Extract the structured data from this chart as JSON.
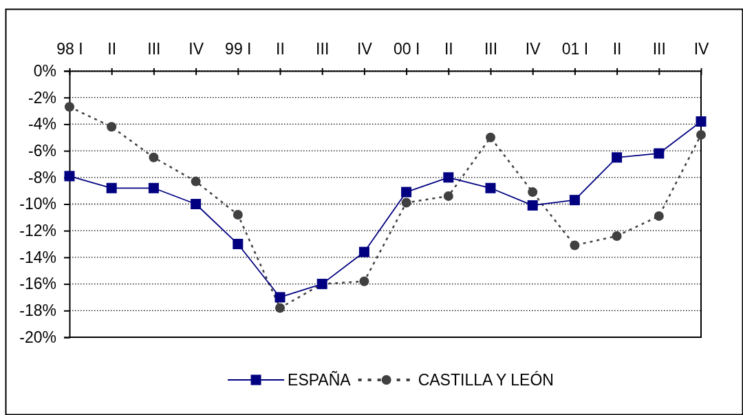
{
  "chart_data": {
    "type": "line",
    "categories": [
      "98 I",
      "II",
      "III",
      "IV",
      "99 I",
      "II",
      "III",
      "IV",
      "00 I",
      "II",
      "III",
      "IV",
      "01 I",
      "II",
      "III",
      "IV"
    ],
    "series": [
      {
        "name": "ESPAÑA",
        "color": "#000080",
        "marker": "square",
        "line_style": "solid",
        "values": [
          -7.9,
          -8.8,
          -8.8,
          -10.0,
          -13.0,
          -17.0,
          -16.0,
          -13.6,
          -9.1,
          -8.0,
          -8.8,
          -10.1,
          -9.7,
          -6.5,
          -6.2,
          -3.8
        ]
      },
      {
        "name": "CASTILLA Y LEÓN",
        "color": "#404040",
        "marker": "circle",
        "line_style": "dashed",
        "values": [
          -2.7,
          -4.2,
          -6.5,
          -8.3,
          -10.8,
          -17.8,
          -16.0,
          -15.8,
          -9.9,
          -9.4,
          -5.0,
          -9.1,
          -13.1,
          -12.4,
          -10.9,
          -4.8
        ]
      }
    ],
    "ylim": [
      -20,
      0
    ],
    "yticks": [
      {
        "value": 0,
        "label": "0%"
      },
      {
        "value": -2,
        "label": "-2%"
      },
      {
        "value": -4,
        "label": "-4%"
      },
      {
        "value": -6,
        "label": "-6%"
      },
      {
        "value": -8,
        "label": "-8%"
      },
      {
        "value": -10,
        "label": "-10%"
      },
      {
        "value": -12,
        "label": "-12%"
      },
      {
        "value": -14,
        "label": "-14%"
      },
      {
        "value": -16,
        "label": "-16%"
      },
      {
        "value": -18,
        "label": "-18%"
      },
      {
        "value": -20,
        "label": "-20%"
      }
    ],
    "grid": "y",
    "legend": "bottom"
  }
}
